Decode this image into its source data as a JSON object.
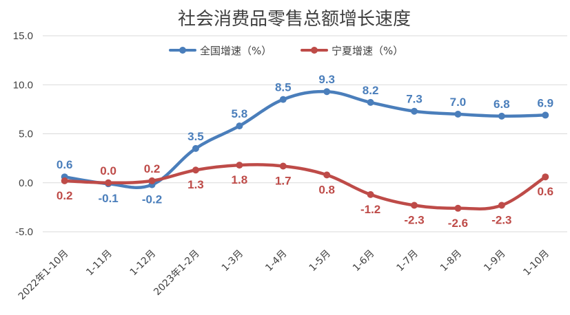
{
  "chart_data": {
    "type": "line",
    "title": "社会消费品零售总额增长速度",
    "xlabel": "",
    "ylabel": "",
    "ylim": [
      -5.0,
      15.0
    ],
    "yticks": [
      "15.0",
      "10.0",
      "5.0",
      "0.0",
      "-5.0"
    ],
    "ytick_values": [
      15,
      10,
      5,
      0,
      -5
    ],
    "grid": true,
    "legend_position": "top-center",
    "categories": [
      "2022年1-10月",
      "1-11月",
      "1-12月",
      "2023年1-2月",
      "1-3月",
      "1-4月",
      "1-5月",
      "1-6月",
      "1-7月",
      "1-8月",
      "1-9月",
      "1-10月"
    ],
    "series": [
      {
        "name": "全国增速（%）",
        "color": "#4a7ebb",
        "values": [
          0.6,
          -0.1,
          -0.2,
          3.5,
          5.8,
          8.5,
          9.3,
          8.2,
          7.3,
          7.0,
          6.8,
          6.9
        ],
        "labels": [
          "0.6",
          "-0.1",
          "-0.2",
          "3.5",
          "5.8",
          "8.5",
          "9.3",
          "8.2",
          "7.3",
          "7.0",
          "6.8",
          "6.9"
        ]
      },
      {
        "name": "宁夏增速（%）",
        "color": "#be4b48",
        "values": [
          0.2,
          0.0,
          0.2,
          1.3,
          1.8,
          1.7,
          0.8,
          -1.2,
          -2.3,
          -2.6,
          -2.3,
          0.6
        ],
        "labels": [
          "0.2",
          "0.0",
          "0.2",
          "1.3",
          "1.8",
          "1.7",
          "0.8",
          "-1.2",
          "-2.3",
          "-2.6",
          "-2.3",
          "0.6"
        ]
      }
    ]
  }
}
